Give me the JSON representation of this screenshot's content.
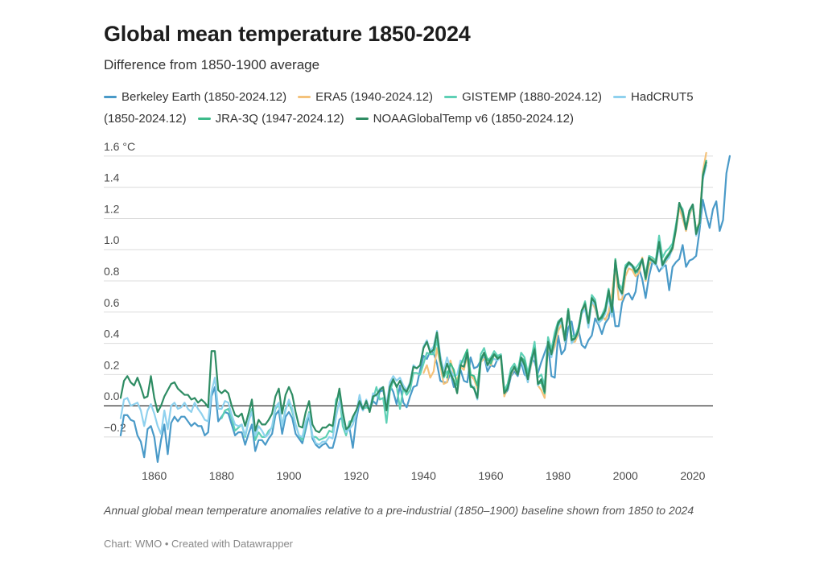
{
  "chart_data": {
    "type": "line",
    "title": "Global mean temperature 1850-2024",
    "subtitle": "Difference from 1850-1900 average",
    "ylim": [
      -0.35,
      1.62
    ],
    "xlim": [
      1845,
      2026
    ],
    "y_ticks": [
      {
        "value": 1.6,
        "label": "1.6 °C"
      },
      {
        "value": 1.4,
        "label": "1.4"
      },
      {
        "value": 1.2,
        "label": "1.2"
      },
      {
        "value": 1.0,
        "label": "1.0"
      },
      {
        "value": 0.8,
        "label": "0.8"
      },
      {
        "value": 0.6,
        "label": "0.6"
      },
      {
        "value": 0.4,
        "label": "0.4"
      },
      {
        "value": 0.2,
        "label": "0.2"
      },
      {
        "value": 0.0,
        "label": "0.0"
      },
      {
        "value": -0.2,
        "label": "−0.2"
      }
    ],
    "x_ticks": [
      1860,
      1880,
      1900,
      1920,
      1940,
      1960,
      1980,
      2000,
      2020
    ],
    "grid": true,
    "legend_position": "top",
    "series": [
      {
        "name": "Berkeley Earth (1850-2024.12)",
        "color": "#4a9ac8",
        "start": 1850,
        "values": [
          -0.19,
          -0.06,
          -0.06,
          -0.09,
          -0.1,
          -0.19,
          -0.23,
          -0.33,
          -0.15,
          -0.13,
          -0.2,
          -0.36,
          -0.22,
          -0.12,
          -0.31,
          -0.11,
          -0.07,
          -0.1,
          -0.07,
          -0.07,
          -0.1,
          -0.13,
          -0.11,
          -0.13,
          -0.13,
          -0.19,
          -0.17,
          0.06,
          0.12,
          -0.1,
          -0.07,
          -0.04,
          -0.05,
          -0.12,
          -0.19,
          -0.17,
          -0.17,
          -0.25,
          -0.18,
          -0.12,
          -0.29,
          -0.22,
          -0.22,
          -0.25,
          -0.21,
          -0.18,
          -0.06,
          -0.03,
          -0.18,
          -0.07,
          -0.04,
          -0.08,
          -0.18,
          -0.21,
          -0.24,
          -0.15,
          -0.06,
          -0.21,
          -0.25,
          -0.27,
          -0.25,
          -0.24,
          -0.27,
          -0.27,
          -0.19,
          -0.09,
          -0.07,
          -0.16,
          -0.14,
          -0.27,
          -0.09,
          0.02,
          -0.03,
          0.03,
          -0.03,
          0.03,
          0.01,
          0.09,
          0.1,
          0.0,
          0.13,
          0.09,
          0.01,
          0.13,
          0.02,
          -0.01,
          0.06,
          0.12,
          0.13,
          0.23,
          0.32,
          0.3,
          0.35,
          0.34,
          0.27,
          0.16,
          0.15,
          0.15,
          0.21,
          0.12,
          0.15,
          0.23,
          0.16,
          0.15,
          0.31,
          0.24,
          0.25,
          0.29,
          0.32,
          0.22,
          0.26,
          0.25,
          0.3,
          0.32,
          0.07,
          0.1,
          0.19,
          0.22,
          0.19,
          0.28,
          0.2,
          0.18,
          0.31,
          0.28,
          0.21,
          0.28,
          0.34,
          0.4,
          0.19,
          0.18,
          0.45,
          0.33,
          0.36,
          0.5,
          0.54,
          0.42,
          0.49,
          0.39,
          0.37,
          0.42,
          0.45,
          0.56,
          0.52,
          0.46,
          0.53,
          0.56,
          0.68,
          0.51,
          0.51,
          0.66,
          0.71,
          0.72,
          0.68,
          0.73,
          0.88,
          0.81,
          0.69,
          0.83,
          0.92,
          0.91,
          0.86,
          0.89,
          0.9,
          0.74,
          0.89,
          0.92,
          0.94,
          1.03,
          0.89,
          0.93,
          0.94,
          0.96,
          1.12,
          1.32,
          1.22,
          1.14,
          1.26,
          1.31,
          1.12,
          1.19,
          1.49,
          1.6
        ]
      },
      {
        "name": "ERA5 (1940-2024.12)",
        "color": "#f4c27b",
        "start": 1940,
        "values": [
          0.21,
          0.26,
          0.18,
          0.22,
          0.37,
          0.26,
          0.14,
          0.15,
          0.29,
          0.21,
          0.16,
          0.25,
          0.23,
          0.32,
          0.19,
          0.17,
          0.11,
          0.28,
          0.3,
          0.3,
          0.26,
          0.33,
          0.31,
          0.3,
          0.06,
          0.12,
          0.2,
          0.24,
          0.2,
          0.31,
          0.25,
          0.15,
          0.26,
          0.35,
          0.13,
          0.1,
          0.05,
          0.38,
          0.32,
          0.38,
          0.48,
          0.52,
          0.41,
          0.62,
          0.41,
          0.41,
          0.46,
          0.6,
          0.64,
          0.52,
          0.67,
          0.62,
          0.53,
          0.58,
          0.55,
          0.6,
          0.72,
          0.9,
          0.68,
          0.68,
          0.83,
          0.88,
          0.87,
          0.83,
          0.85,
          0.95,
          0.8,
          0.9,
          0.94,
          0.93,
          1.02,
          0.9,
          0.92,
          0.96,
          1.0,
          1.12,
          1.27,
          1.2,
          1.12,
          1.22,
          1.28,
          1.12,
          1.18,
          1.5,
          1.62
        ]
      },
      {
        "name": "GISTEMP (1880-2024.12)",
        "color": "#5ed0b5",
        "start": 1880,
        "values": [
          -0.08,
          -0.03,
          -0.02,
          -0.08,
          -0.16,
          -0.14,
          -0.12,
          -0.2,
          -0.1,
          -0.02,
          -0.22,
          -0.17,
          -0.2,
          -0.2,
          -0.16,
          -0.14,
          -0.02,
          0.01,
          -0.13,
          -0.02,
          0.02,
          -0.04,
          -0.12,
          -0.19,
          -0.22,
          -0.12,
          -0.04,
          -0.2,
          -0.2,
          -0.22,
          -0.21,
          -0.2,
          -0.16,
          -0.17,
          0.04,
          0.07,
          -0.13,
          -0.19,
          -0.1,
          -0.1,
          -0.05,
          0.05,
          -0.02,
          -0.01,
          -0.02,
          0.04,
          0.12,
          0.04,
          0.05,
          -0.11,
          0.09,
          0.16,
          0.13,
          -0.02,
          0.11,
          0.07,
          0.1,
          0.21,
          0.21,
          0.2,
          0.27,
          0.34,
          0.33,
          0.33,
          0.42,
          0.28,
          0.18,
          0.22,
          0.2,
          0.16,
          0.09,
          0.26,
          0.25,
          0.35,
          0.12,
          0.12,
          0.05,
          0.33,
          0.37,
          0.29,
          0.31,
          0.35,
          0.32,
          0.33,
          0.1,
          0.14,
          0.24,
          0.27,
          0.22,
          0.34,
          0.31,
          0.21,
          0.3,
          0.41,
          0.18,
          0.2,
          0.13,
          0.44,
          0.36,
          0.47,
          0.54,
          0.56,
          0.44,
          0.62,
          0.45,
          0.44,
          0.5,
          0.6,
          0.67,
          0.53,
          0.71,
          0.68,
          0.54,
          0.58,
          0.63,
          0.75,
          0.61,
          0.93,
          0.78,
          0.75,
          0.9,
          0.92,
          0.9,
          0.88,
          0.91,
          0.94,
          0.84,
          0.96,
          0.95,
          0.93,
          1.09,
          0.95,
          0.99,
          1.01,
          1.04,
          1.16,
          1.29,
          1.26,
          1.14,
          1.23,
          1.29,
          1.11,
          1.16,
          1.47,
          1.56
        ]
      },
      {
        "name": "HadCRUT5 (1850-2024.12)",
        "color": "#8fd1ee",
        "start": 1850,
        "values": [
          -0.08,
          0.04,
          0.05,
          0.0,
          0.01,
          0.02,
          -0.03,
          -0.13,
          -0.03,
          0.01,
          -0.05,
          -0.13,
          -0.18,
          -0.03,
          -0.15,
          0.0,
          0.02,
          -0.02,
          -0.01,
          0.02,
          -0.02,
          -0.04,
          0.02,
          -0.02,
          -0.05,
          -0.09,
          -0.1,
          0.09,
          0.18,
          -0.02,
          -0.02,
          0.03,
          0.02,
          -0.06,
          -0.12,
          -0.13,
          -0.12,
          -0.19,
          -0.1,
          -0.04,
          -0.19,
          -0.13,
          -0.16,
          -0.2,
          -0.18,
          -0.13,
          -0.01,
          0.02,
          -0.13,
          -0.03,
          0.04,
          -0.02,
          -0.12,
          -0.19,
          -0.2,
          -0.1,
          -0.05,
          -0.19,
          -0.24,
          -0.25,
          -0.23,
          -0.23,
          -0.2,
          -0.21,
          -0.07,
          0.03,
          -0.05,
          -0.17,
          -0.15,
          -0.12,
          -0.05,
          0.07,
          -0.03,
          0.04,
          -0.03,
          0.08,
          0.06,
          0.11,
          0.12,
          0.0,
          0.15,
          0.19,
          0.16,
          0.18,
          0.13,
          0.1,
          0.15,
          0.26,
          0.24,
          0.26,
          0.38,
          0.42,
          0.35,
          0.38,
          0.48,
          0.32,
          0.22,
          0.31,
          0.23,
          0.19,
          0.2,
          0.29,
          0.28,
          0.33,
          0.14,
          0.11,
          0.04,
          0.28,
          0.33,
          0.25,
          0.29,
          0.3,
          0.29,
          0.32,
          0.08,
          0.11,
          0.21,
          0.24,
          0.21,
          0.3,
          0.23,
          0.15,
          0.27,
          0.34,
          0.13,
          0.17,
          0.08,
          0.4,
          0.31,
          0.42,
          0.51,
          0.54,
          0.41,
          0.6,
          0.4,
          0.43,
          0.47,
          0.59,
          0.62,
          0.5,
          0.67,
          0.64,
          0.53,
          0.55,
          0.59,
          0.7,
          0.57,
          0.93,
          0.75,
          0.71,
          0.87,
          0.91,
          0.89,
          0.86,
          0.88,
          0.93,
          0.81,
          0.95,
          0.92,
          0.9,
          1.02,
          0.88,
          0.93,
          0.95,
          1.01,
          1.13,
          1.3,
          1.23,
          1.13,
          1.25,
          1.29,
          1.09,
          1.16,
          1.45,
          1.54
        ]
      },
      {
        "name": "JRA-3Q (1947-2024.12)",
        "color": "#3dbb8a",
        "start": 1947,
        "values": [
          0.18,
          0.27,
          0.23,
          0.13,
          0.26,
          0.31,
          0.36,
          0.2,
          0.19,
          0.13,
          0.3,
          0.34,
          0.3,
          0.27,
          0.33,
          0.31,
          0.31,
          0.08,
          0.12,
          0.21,
          0.25,
          0.2,
          0.31,
          0.29,
          0.18,
          0.28,
          0.37,
          0.14,
          0.15,
          0.08,
          0.4,
          0.33,
          0.43,
          0.52,
          0.56,
          0.42,
          0.62,
          0.43,
          0.43,
          0.48,
          0.61,
          0.66,
          0.53,
          0.69,
          0.66,
          0.55,
          0.56,
          0.61,
          0.73,
          0.6,
          0.94,
          0.76,
          0.72,
          0.88,
          0.91,
          0.9,
          0.85,
          0.88,
          0.94,
          0.81,
          0.94,
          0.93,
          0.92,
          1.05,
          0.91,
          0.95,
          0.98,
          1.02,
          1.14,
          1.3,
          1.24,
          1.14,
          1.25,
          1.29,
          1.12,
          1.17,
          1.48,
          1.57
        ]
      },
      {
        "name": "NOAAGlobalTemp v6 (1850-2024.12)",
        "color": "#2e8c63",
        "start": 1850,
        "values": [
          0.05,
          0.16,
          0.19,
          0.15,
          0.13,
          0.18,
          0.12,
          0.05,
          0.06,
          0.19,
          0.05,
          -0.04,
          0.0,
          0.06,
          0.1,
          0.14,
          0.15,
          0.11,
          0.09,
          0.07,
          0.07,
          0.04,
          0.05,
          0.02,
          0.04,
          0.02,
          -0.01,
          0.35,
          0.35,
          0.1,
          0.08,
          0.1,
          0.08,
          0.0,
          -0.06,
          -0.07,
          -0.05,
          -0.13,
          -0.05,
          0.04,
          -0.16,
          -0.09,
          -0.12,
          -0.12,
          -0.09,
          -0.05,
          0.06,
          0.11,
          -0.05,
          0.07,
          0.12,
          0.07,
          -0.04,
          -0.13,
          -0.14,
          -0.04,
          0.03,
          -0.12,
          -0.16,
          -0.17,
          -0.14,
          -0.14,
          -0.12,
          -0.13,
          0.0,
          0.11,
          -0.04,
          -0.15,
          -0.13,
          -0.07,
          -0.03,
          0.03,
          -0.02,
          0.03,
          -0.04,
          0.06,
          0.07,
          0.1,
          0.12,
          -0.03,
          0.12,
          0.17,
          0.12,
          0.16,
          0.11,
          0.09,
          0.14,
          0.25,
          0.24,
          0.26,
          0.37,
          0.41,
          0.34,
          0.36,
          0.47,
          0.29,
          0.19,
          0.27,
          0.21,
          0.16,
          0.08,
          0.26,
          0.25,
          0.34,
          0.13,
          0.11,
          0.05,
          0.29,
          0.34,
          0.26,
          0.3,
          0.33,
          0.3,
          0.32,
          0.08,
          0.11,
          0.21,
          0.25,
          0.2,
          0.31,
          0.26,
          0.17,
          0.29,
          0.36,
          0.14,
          0.17,
          0.09,
          0.41,
          0.33,
          0.43,
          0.53,
          0.56,
          0.42,
          0.61,
          0.42,
          0.43,
          0.48,
          0.61,
          0.65,
          0.53,
          0.69,
          0.66,
          0.55,
          0.57,
          0.61,
          0.74,
          0.6,
          0.93,
          0.76,
          0.72,
          0.88,
          0.92,
          0.9,
          0.86,
          0.88,
          0.94,
          0.82,
          0.95,
          0.93,
          0.91,
          1.05,
          0.9,
          0.94,
          0.97,
          1.01,
          1.13,
          1.3,
          1.24,
          1.13,
          1.25,
          1.29,
          1.1,
          1.17,
          1.47,
          1.56
        ]
      }
    ]
  },
  "notes": "Annual global mean temperature anomalies relative to a pre-industrial (1850–1900) baseline shown from 1850 to 2024",
  "credit": "Chart: WMO • Created with Datawrapper"
}
